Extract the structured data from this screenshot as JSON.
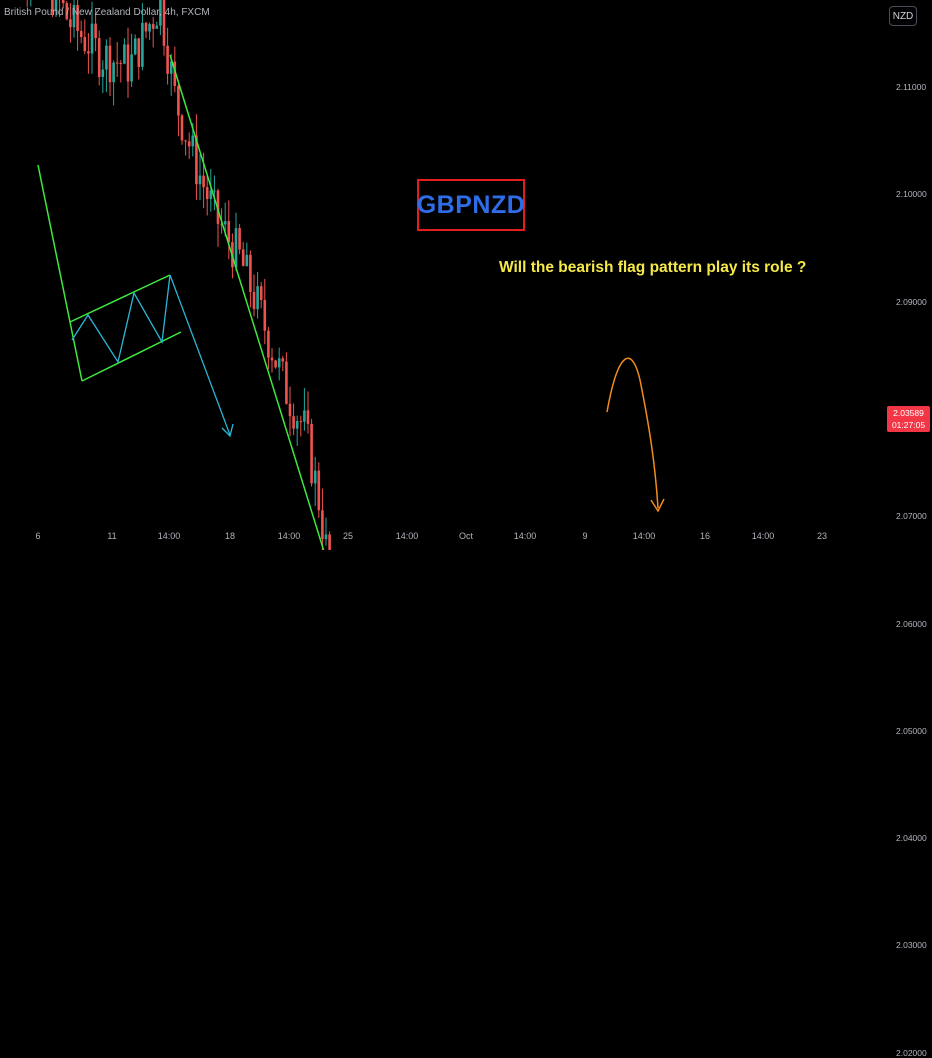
{
  "header": {
    "title": "British Pound / New Zealand Dollar, 4h, FXCM",
    "currency_button": "NZD"
  },
  "annotations": {
    "symbol": "GBPNZD",
    "question": "Will the bearish flag pattern play its role ?"
  },
  "price_tag": {
    "price": "2.03589",
    "countdown": "01:27:05",
    "color": "#f23645"
  },
  "colors": {
    "bull": "#26a69a",
    "bear": "#ef5350",
    "flag_line": "#3ee83e",
    "zigzag": "#2ab7d6",
    "projection": "#f28c1c",
    "zone": "#6f6f6f"
  },
  "chart_data": {
    "type": "candlestick",
    "title": "British Pound / New Zealand Dollar, 4h, FXCM",
    "ylim": [
      2.014,
      2.125
    ],
    "y_ticks": [
      "2.11000",
      "2.10000",
      "2.09000",
      "2.08000",
      "2.07000",
      "2.06000",
      "2.05000",
      "2.04000",
      "2.03000",
      "2.02000"
    ],
    "x_ticks": [
      "6",
      "11",
      "14:00",
      "18",
      "14:00",
      "25",
      "14:00",
      "Oct",
      "14:00",
      "9",
      "14:00",
      "16",
      "14:00",
      "23"
    ],
    "current_price": 2.03589,
    "price_path": [
      [
        0,
        2.123
      ],
      [
        40,
        2.121
      ],
      [
        70,
        2.116
      ],
      [
        100,
        2.113
      ],
      [
        130,
        2.112
      ],
      [
        160,
        2.118
      ],
      [
        175,
        2.109
      ],
      [
        195,
        2.103
      ],
      [
        215,
        2.098
      ],
      [
        240,
        2.094
      ],
      [
        260,
        2.089
      ],
      [
        285,
        2.082
      ],
      [
        305,
        2.078
      ],
      [
        320,
        2.071
      ],
      [
        332,
        2.063
      ],
      [
        340,
        2.051
      ],
      [
        355,
        2.057
      ],
      [
        370,
        2.044
      ],
      [
        385,
        2.041
      ],
      [
        400,
        2.047
      ],
      [
        415,
        2.044
      ],
      [
        430,
        2.048
      ],
      [
        445,
        2.038
      ],
      [
        455,
        2.03
      ],
      [
        470,
        2.033
      ],
      [
        490,
        2.036
      ],
      [
        500,
        2.043
      ],
      [
        515,
        2.042
      ],
      [
        525,
        2.055
      ],
      [
        535,
        2.051
      ],
      [
        545,
        2.043
      ],
      [
        560,
        2.044
      ],
      [
        575,
        2.043
      ],
      [
        590,
        2.041
      ],
      [
        598,
        2.0359
      ]
    ],
    "flag_levels": {
      "upper_channel": [
        [
          380,
          2.0505
        ],
        [
          570,
          2.0615
        ]
      ],
      "lower_channel": [
        [
          450,
          2.0277
        ],
        [
          628,
          2.0355
        ]
      ],
      "pole": [
        [
          170,
          2.114
        ],
        [
          378,
          2.0505
        ]
      ],
      "pole_lower": [
        [
          440,
          2.029
        ]
      ],
      "dotted_level": 2.0405,
      "resistance_zone": [
        2.0475,
        2.049
      ],
      "projection_target": 2.018
    }
  }
}
